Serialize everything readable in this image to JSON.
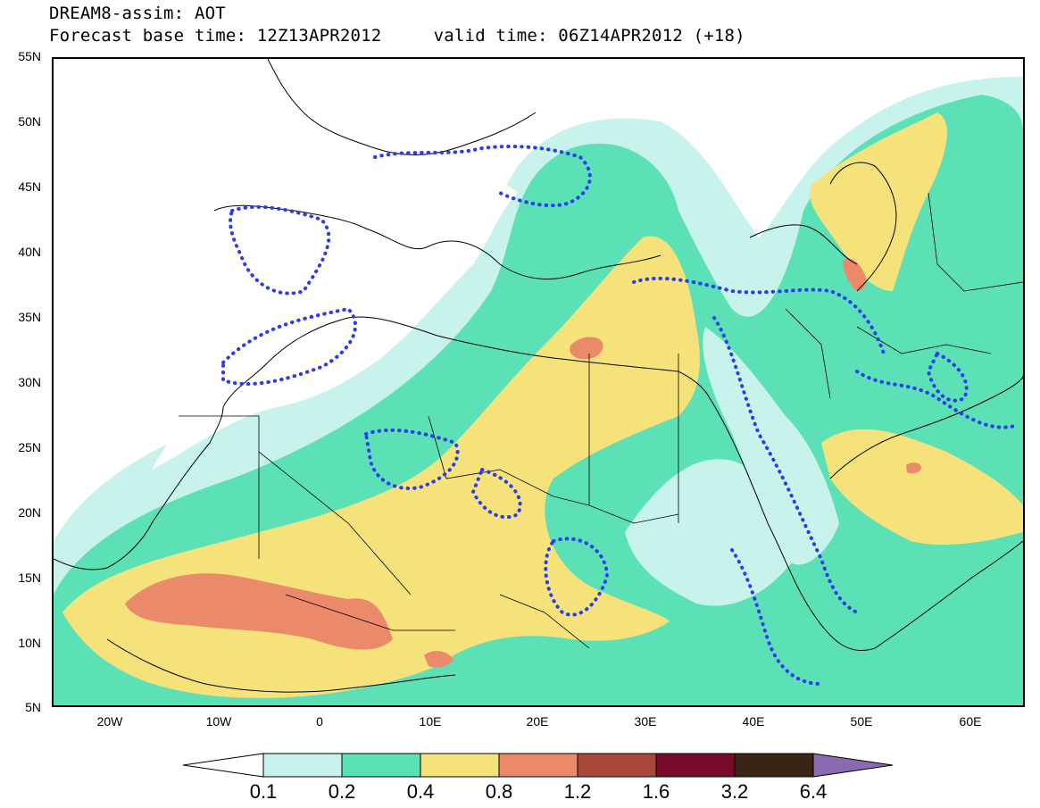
{
  "title": {
    "line1": "DREAM8-assim: AOT",
    "line2": "Forecast base time: 12Z13APR2012     valid time: 06Z14APR2012 (+18)"
  },
  "axes": {
    "lat_labels": [
      "55N",
      "50N",
      "45N",
      "40N",
      "35N",
      "30N",
      "25N",
      "20N",
      "15N",
      "10N",
      "5N"
    ],
    "lon_labels": [
      "20W",
      "10W",
      "0",
      "10E",
      "20E",
      "30E",
      "40E",
      "50E",
      "60E"
    ]
  },
  "legend": {
    "labels": [
      "0.1",
      "0.2",
      "0.4",
      "0.8",
      "1.2",
      "1.6",
      "3.2",
      "6.4"
    ],
    "colors": [
      "#ffffff",
      "#c8f2ec",
      "#5ce0b6",
      "#f5e27a",
      "#ea8a6a",
      "#a8473a",
      "#7a0a2a",
      "#3a2416",
      "#8a6ab0"
    ]
  },
  "map": {
    "region": "North Africa, Europe, Middle East",
    "contour_color": "#2a3cf0"
  }
}
